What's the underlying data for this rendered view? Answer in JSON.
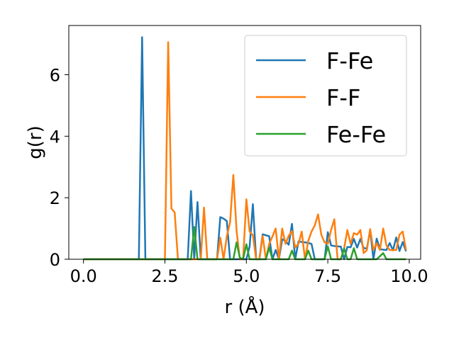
{
  "chart_data": {
    "type": "line",
    "title": "",
    "xlabel": "r (Å)",
    "ylabel": "g(r)",
    "xlim": [
      -0.45,
      10.35
    ],
    "ylim": [
      0,
      7.6
    ],
    "xticks": [
      0,
      2.5,
      5,
      7.5,
      10
    ],
    "xtick_labels": [
      "0.0",
      "2.5",
      "5.0",
      "7.5",
      "10.0"
    ],
    "yticks": [
      0,
      2,
      4,
      6
    ],
    "ytick_labels": [
      "0",
      "2",
      "4",
      "6"
    ],
    "grid": false,
    "legend_position": "top-right",
    "series": [
      {
        "name": "F-Fe",
        "color": "#1f77b4",
        "x": [
          0,
          1.7,
          1.8,
          1.9,
          2.0,
          3.2,
          3.3,
          3.4,
          3.5,
          3.6,
          3.7,
          4.1,
          4.2,
          4.3,
          4.4,
          4.5,
          4.6,
          4.9,
          5.0,
          5.1,
          5.2,
          5.3,
          5.4,
          5.5,
          5.6,
          5.7,
          5.8,
          5.9,
          6.0,
          6.1,
          6.2,
          6.3,
          6.4,
          6.5,
          6.6,
          6.7,
          6.8,
          6.9,
          7.0,
          7.1,
          7.2,
          7.3,
          7.4,
          7.5,
          7.6,
          7.7,
          7.8,
          7.9,
          8.0,
          8.1,
          8.2,
          8.3,
          8.4,
          8.5,
          8.6,
          8.7,
          8.8,
          8.9,
          9.0,
          9.1,
          9.2,
          9.3,
          9.4,
          9.5,
          9.6,
          9.7,
          9.8,
          9.9
        ],
        "y": [
          0,
          0,
          7.22,
          0,
          0,
          0,
          2.22,
          0,
          1.86,
          0,
          0,
          0,
          1.37,
          1.32,
          1.24,
          0,
          0,
          0,
          0,
          0.41,
          1.79,
          0,
          0,
          0.81,
          0.78,
          0.75,
          0,
          0.3,
          0,
          0.65,
          0.6,
          0.47,
          1.15,
          0,
          0.58,
          0.56,
          0.55,
          0.53,
          0.5,
          0,
          0,
          0,
          0,
          0.88,
          0.45,
          0.43,
          0.42,
          0.41,
          0,
          0.4,
          0.39,
          0.66,
          0.38,
          0.66,
          0.36,
          0.35,
          0.95,
          0,
          0.67,
          0.33,
          0.31,
          0.3,
          0.53,
          0.29,
          0.71,
          0.27,
          0.56,
          0.26
        ]
      },
      {
        "name": "F-F",
        "color": "#ff7f0e",
        "x": [
          0,
          2.5,
          2.6,
          2.7,
          2.8,
          2.9,
          3.6,
          3.7,
          3.8,
          3.9,
          4.1,
          4.2,
          4.3,
          4.4,
          4.5,
          4.6,
          4.7,
          4.8,
          4.9,
          5.0,
          5.1,
          5.2,
          5.3,
          5.4,
          5.5,
          5.6,
          5.7,
          5.8,
          5.9,
          6.0,
          6.1,
          6.2,
          6.3,
          6.4,
          6.5,
          6.6,
          6.7,
          6.8,
          6.9,
          7.0,
          7.1,
          7.2,
          7.3,
          7.4,
          7.5,
          7.6,
          7.7,
          7.8,
          7.9,
          8.0,
          8.1,
          8.2,
          8.3,
          8.4,
          8.5,
          8.6,
          8.7,
          8.8,
          8.9,
          9.0,
          9.1,
          9.2,
          9.3,
          9.4,
          9.5,
          9.6,
          9.7,
          9.8,
          9.9
        ],
        "y": [
          0,
          0,
          7.06,
          1.65,
          1.52,
          0,
          0,
          1.68,
          0,
          0,
          0,
          0.7,
          0,
          0.75,
          1.2,
          2.74,
          0.92,
          0,
          0,
          1.95,
          0.9,
          0.78,
          0,
          0,
          0.76,
          0,
          0.5,
          0.74,
          1.0,
          0,
          1.0,
          0.5,
          0.76,
          0.92,
          0.38,
          0.5,
          0.9,
          0,
          0.6,
          0.9,
          1.1,
          1.46,
          0.8,
          0.55,
          0.5,
          0.95,
          1.3,
          0,
          0,
          0.35,
          0.95,
          0.5,
          0.85,
          0.8,
          0.95,
          0.2,
          0.3,
          0.98,
          0.3,
          0.52,
          0.3,
          1.0,
          0.45,
          0.3,
          0.3,
          0.3,
          0.8,
          0.9,
          0.3
        ]
      },
      {
        "name": "Fe-Fe",
        "color": "#2ca02c",
        "x": [
          0,
          3.3,
          3.4,
          3.5,
          4.6,
          4.7,
          4.8,
          4.9,
          5.0,
          5.1,
          5.6,
          5.7,
          5.8,
          6.3,
          6.4,
          6.5,
          6.8,
          6.9,
          7.0,
          7.4,
          7.5,
          7.6,
          7.9,
          8.0,
          8.1,
          8.2,
          8.3,
          8.4,
          9.0,
          9.1,
          9.2,
          9.3,
          9.9
        ],
        "y": [
          0,
          0,
          1.05,
          0,
          0,
          0.55,
          0.05,
          0,
          0.49,
          0,
          0,
          0.38,
          0,
          0,
          0.28,
          0,
          0,
          0.28,
          0,
          0,
          0.42,
          0,
          0,
          0.35,
          0,
          0,
          0.36,
          0,
          0,
          0.1,
          0.2,
          0,
          0
        ]
      }
    ]
  }
}
